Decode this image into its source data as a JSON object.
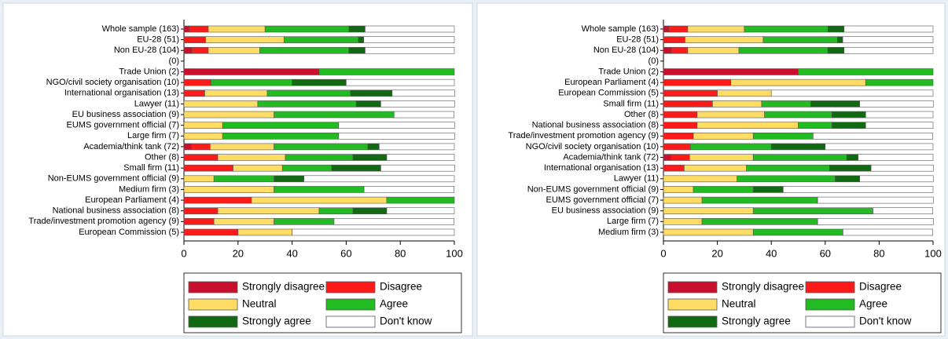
{
  "chart_data": [
    {
      "type": "bar",
      "orientation": "horizontal",
      "stacked": true,
      "categories": [
        "Whole sample (163)",
        "EU-28 (51)",
        "Non EU-28 (104)",
        "(0)",
        "Trade Union (2)",
        "NGO/civil society organisation (10)",
        "International organisation (13)",
        "Lawyer (11)",
        "EU business association (9)",
        "EUMS government official (7)",
        "Large firm (7)",
        "Academia/think tank (72)",
        "Other (8)",
        "Small firm (11)",
        "Non-EUMS government official (9)",
        "Medium firm (3)",
        "European Parliament (4)",
        "National business association (8)",
        "Trade/investment promotion agency (9)",
        "European Commission (5)"
      ],
      "series": [
        {
          "name": "Strongly disagree",
          "color": "#c8102e",
          "values": [
            2,
            0,
            3,
            0,
            50,
            0,
            0,
            0,
            0,
            0,
            0,
            2.8,
            0,
            0,
            0,
            0,
            0,
            0,
            0,
            0
          ]
        },
        {
          "name": "Disagree",
          "color": "#ff1a1a",
          "values": [
            7,
            8,
            6,
            0,
            0,
            10,
            7.7,
            0,
            0,
            0,
            0,
            6.9,
            12.5,
            18.2,
            0,
            0,
            25,
            12.5,
            11.1,
            20
          ]
        },
        {
          "name": "Neutral",
          "color": "#ffdc64",
          "values": [
            21,
            29,
            19,
            0,
            0,
            0,
            23.1,
            27.3,
            33.3,
            14.3,
            14.3,
            23.6,
            25,
            18.2,
            11.1,
            33.3,
            50,
            37.5,
            22.2,
            20
          ]
        },
        {
          "name": "Agree",
          "color": "#22bb22",
          "values": [
            31,
            27.5,
            33,
            0,
            50,
            30,
            30.8,
            36.4,
            44.4,
            42.9,
            42.9,
            34.7,
            25,
            18.2,
            22.2,
            33.3,
            25,
            12.5,
            22.2,
            0
          ]
        },
        {
          "name": "Strongly agree",
          "color": "#116a11",
          "values": [
            6,
            2,
            6,
            0,
            0,
            20,
            15.4,
            9.1,
            0,
            0,
            0,
            4.2,
            12.5,
            18.2,
            11.1,
            0,
            0,
            12.5,
            0,
            0
          ]
        },
        {
          "name": "Don't know",
          "color": "#ffffff",
          "values": [
            33,
            33.5,
            33,
            0,
            0,
            40,
            23.1,
            27.3,
            22.2,
            42.9,
            42.9,
            27.8,
            25,
            27.3,
            55.6,
            33.3,
            0,
            25,
            44.4,
            60
          ]
        }
      ],
      "xlim": [
        0,
        100
      ],
      "xticks": [
        0,
        20,
        40,
        60,
        80,
        100
      ]
    },
    {
      "type": "bar",
      "orientation": "horizontal",
      "stacked": true,
      "categories": [
        "Whole sample (163)",
        "EU-28 (51)",
        "Non EU-28 (104)",
        "(0)",
        "Trade Union (2)",
        "European Parliament (4)",
        "European Commission (5)",
        "Small firm (11)",
        "Other (8)",
        "National business association (8)",
        "Trade/investment promotion agency (9)",
        "NGO/civil society organisation (10)",
        "Academia/think tank (72)",
        "International organisation (13)",
        "Lawyer (11)",
        "Non-EUMS government official (9)",
        "EUMS government official (7)",
        "EU business association (9)",
        "Large firm (7)",
        "Medium firm (3)"
      ],
      "series": [
        {
          "name": "Strongly disagree",
          "color": "#c8102e",
          "values": [
            2,
            0,
            3,
            0,
            50,
            0,
            0,
            0,
            0,
            0,
            0,
            0,
            2.8,
            0,
            0,
            0,
            0,
            0,
            0,
            0
          ]
        },
        {
          "name": "Disagree",
          "color": "#ff1a1a",
          "values": [
            7,
            8,
            6,
            0,
            0,
            25,
            20,
            18.2,
            12.5,
            12.5,
            11.1,
            10,
            6.9,
            7.7,
            0,
            0,
            0,
            0,
            0,
            0
          ]
        },
        {
          "name": "Neutral",
          "color": "#ffdc64",
          "values": [
            21,
            29,
            19,
            0,
            0,
            50,
            20,
            18.2,
            25,
            37.5,
            22.2,
            0,
            23.6,
            23.1,
            27.3,
            11.1,
            14.3,
            33.3,
            14.3,
            33.3
          ]
        },
        {
          "name": "Agree",
          "color": "#22bb22",
          "values": [
            31,
            27.5,
            33,
            0,
            50,
            25,
            0,
            18.2,
            25,
            12.5,
            22.2,
            30,
            34.7,
            30.8,
            36.4,
            22.2,
            42.9,
            44.4,
            42.9,
            33.3
          ]
        },
        {
          "name": "Strongly agree",
          "color": "#116a11",
          "values": [
            6,
            2,
            6,
            0,
            0,
            0,
            0,
            18.2,
            12.5,
            12.5,
            0,
            20,
            4.2,
            15.4,
            9.1,
            11.1,
            0,
            0,
            0,
            0
          ]
        },
        {
          "name": "Don't know",
          "color": "#ffffff",
          "values": [
            33,
            33.5,
            33,
            0,
            0,
            0,
            60,
            27.3,
            25,
            25,
            44.4,
            40,
            27.8,
            23.1,
            27.3,
            55.6,
            42.9,
            22.2,
            42.9,
            33.3
          ]
        }
      ],
      "xlim": [
        0,
        100
      ],
      "xticks": [
        0,
        20,
        40,
        60,
        80,
        100
      ]
    }
  ]
}
